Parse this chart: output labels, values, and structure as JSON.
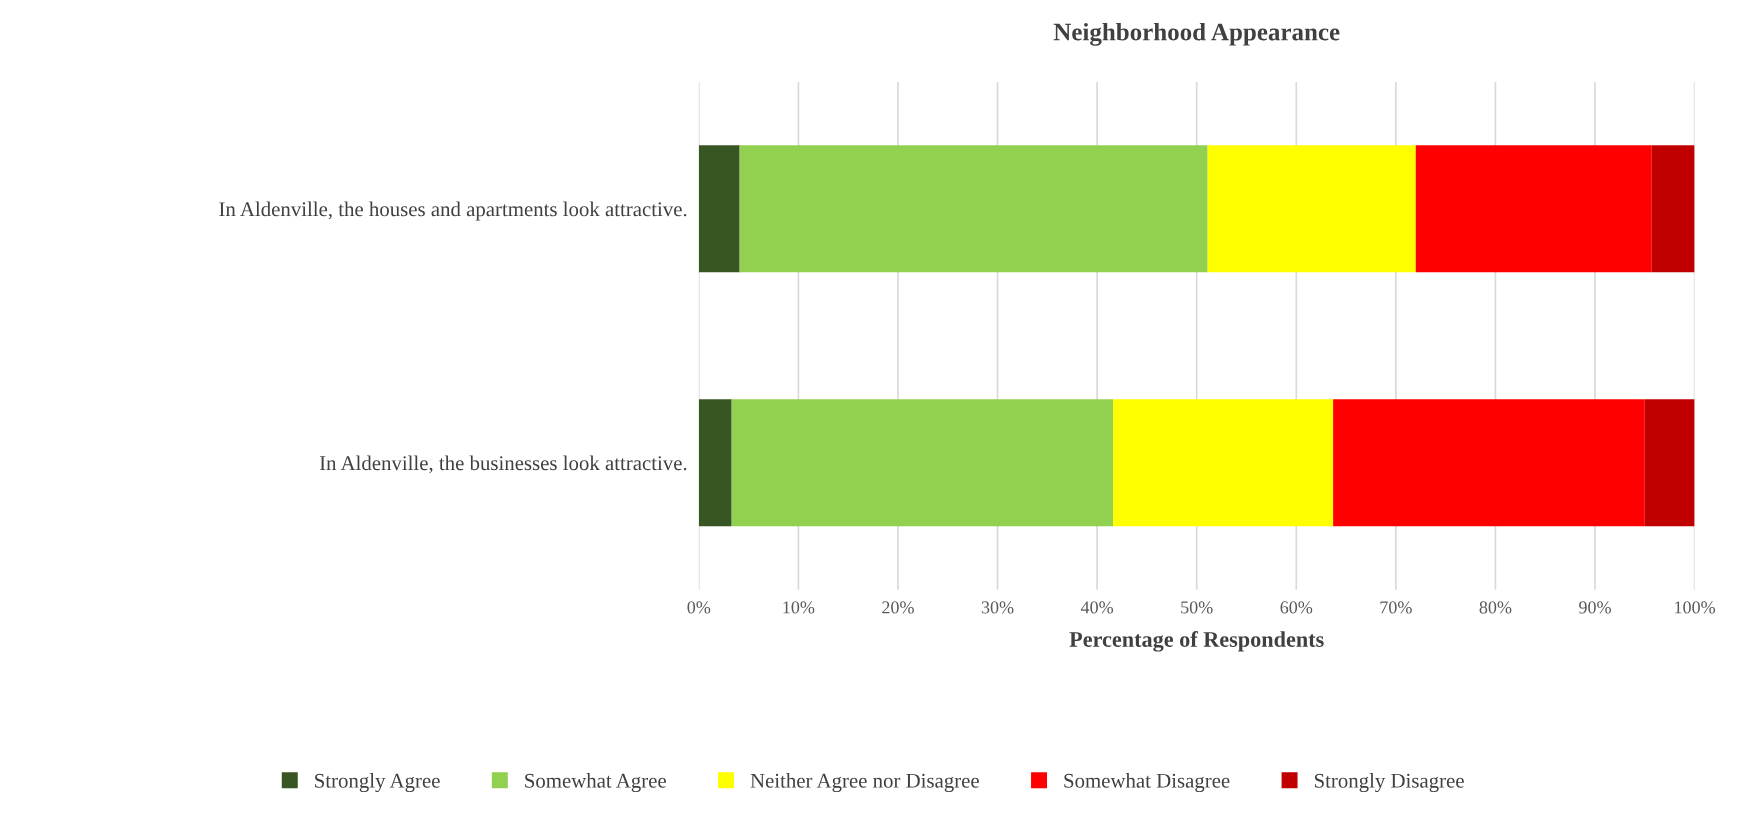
{
  "chart_data": {
    "type": "bar",
    "orientation": "horizontal",
    "stacked": true,
    "title": "Neighborhood Appearance",
    "xlabel": "Percentage of Respondents",
    "categories": [
      "In Aldenville, the houses and apartments look attractive.",
      "In Aldenville, the businesses look attractive."
    ],
    "series": [
      {
        "name": "Strongly Agree",
        "color": "#375623",
        "values": [
          4.1,
          3.3
        ]
      },
      {
        "name": "Somewhat Agree",
        "color": "#92d050",
        "values": [
          47.0,
          38.3
        ]
      },
      {
        "name": "Neither Agree nor Disagree",
        "color": "#ffff00",
        "values": [
          20.9,
          22.1
        ]
      },
      {
        "name": "Somewhat Disagree",
        "color": "#ff0000",
        "values": [
          23.7,
          31.3
        ]
      },
      {
        "name": "Strongly Disagree",
        "color": "#c00000",
        "values": [
          4.3,
          5.0
        ]
      }
    ],
    "xlim": [
      0,
      100
    ],
    "xticks": [
      {
        "value": 0,
        "label": "0%"
      },
      {
        "value": 10,
        "label": "10%"
      },
      {
        "value": 20,
        "label": "20%"
      },
      {
        "value": 30,
        "label": "30%"
      },
      {
        "value": 40,
        "label": "40%"
      },
      {
        "value": 50,
        "label": "50%"
      },
      {
        "value": 60,
        "label": "60%"
      },
      {
        "value": 70,
        "label": "70%"
      },
      {
        "value": 80,
        "label": "80%"
      },
      {
        "value": 90,
        "label": "90%"
      },
      {
        "value": 100,
        "label": "100%"
      }
    ],
    "grid": "x",
    "legend": "bottom"
  }
}
